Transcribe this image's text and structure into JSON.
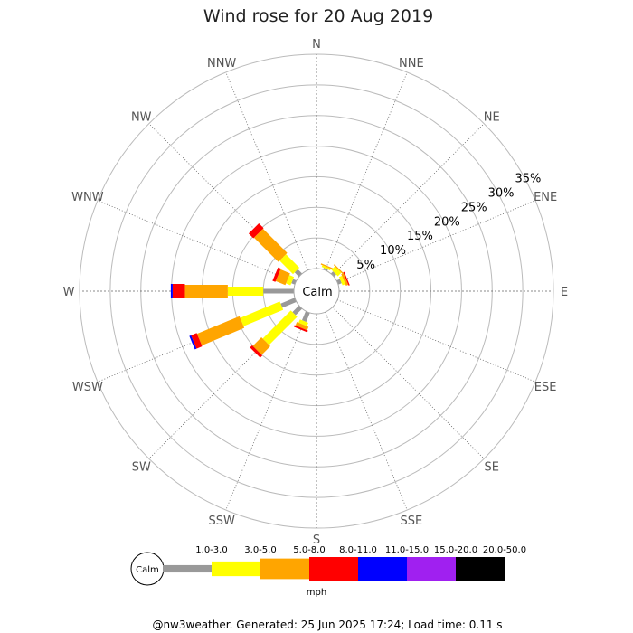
{
  "chart_data": {
    "type": "windrose",
    "title": "Wind rose for 20 Aug 2019",
    "directions": [
      "N",
      "NNE",
      "NE",
      "ENE",
      "E",
      "ESE",
      "SE",
      "SSE",
      "S",
      "SSW",
      "SW",
      "WSW",
      "W",
      "WNW",
      "NW",
      "NNW"
    ],
    "ring_labels": [
      "5%",
      "10%",
      "15%",
      "20%",
      "25%",
      "30%",
      "35%"
    ],
    "rings_percent": [
      5,
      10,
      15,
      20,
      25,
      30,
      35
    ],
    "rmax_percent": 35,
    "calm_label": "Calm",
    "unit": "mph",
    "speed_bins": [
      {
        "label": "1.0-3.0",
        "color": "#999999"
      },
      {
        "label": "3.0-5.0",
        "color": "#ffff00"
      },
      {
        "label": "5.0-8.0",
        "color": "#ffa500"
      },
      {
        "label": "8.0-11.0",
        "color": "#ff0000"
      },
      {
        "label": "11.0-15.0",
        "color": "#0000ff"
      },
      {
        "label": "15.0-20.0",
        "color": "#a020f0"
      },
      {
        "label": "20.0-50.0",
        "color": "#000000"
      }
    ],
    "series": [
      {
        "direction": "NNE",
        "values": [
          0.3,
          0.3,
          0.2,
          0,
          0,
          0,
          0
        ]
      },
      {
        "direction": "NE",
        "values": [
          0.5,
          0.8,
          0.2,
          0,
          0,
          0,
          0
        ]
      },
      {
        "direction": "ENE",
        "values": [
          0.6,
          0.5,
          0.4,
          0.2,
          0,
          0,
          0
        ]
      },
      {
        "direction": "WNW",
        "values": [
          0.6,
          0.8,
          1.7,
          0.5,
          0,
          0,
          0
        ]
      },
      {
        "direction": "NW",
        "values": [
          1.0,
          3.1,
          5.6,
          1.1,
          0,
          0,
          0
        ]
      },
      {
        "direction": "W",
        "values": [
          5.0,
          5.8,
          7.0,
          2.0,
          0.3,
          0,
          0
        ]
      },
      {
        "direction": "WSW",
        "values": [
          2.5,
          7.0,
          7.5,
          1.0,
          0.3,
          0,
          0
        ]
      },
      {
        "direction": "SW",
        "values": [
          1.5,
          6.5,
          2.0,
          0.5,
          0,
          0,
          0
        ]
      },
      {
        "direction": "SSW",
        "values": [
          1.6,
          0.6,
          0.6,
          0.3,
          0,
          0,
          0
        ]
      }
    ]
  },
  "footer": "@nw3weather. Generated: 25 Jun 2025 17:24; Load time: 0.11 s"
}
